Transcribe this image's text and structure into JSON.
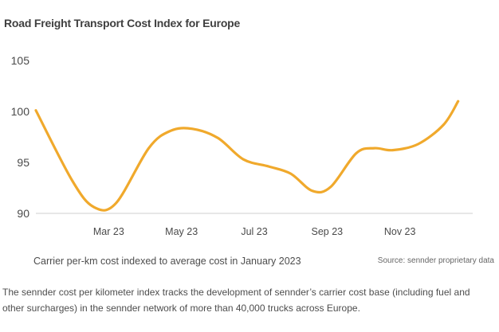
{
  "title": "Road Freight Transport Cost Index for Europe",
  "chart_data": {
    "type": "line",
    "title": "Road Freight Transport Cost Index for Europe",
    "xlabel": "",
    "ylabel": "",
    "ylim": [
      90,
      105
    ],
    "yticks": [
      90,
      95,
      100,
      105
    ],
    "xlim": [
      0,
      12
    ],
    "xticks": [
      {
        "label": "Mar 23",
        "x": 2
      },
      {
        "label": "May 23",
        "x": 4
      },
      {
        "label": "Jul 23",
        "x": 6
      },
      {
        "label": "Sep 23",
        "x": 8
      },
      {
        "label": "Nov 23",
        "x": 10
      }
    ],
    "grid": false,
    "color": "#f0a92c",
    "series": [
      {
        "name": "Carrier per-km cost index",
        "points": [
          [
            0.0,
            100.1
          ],
          [
            1.0,
            93.2
          ],
          [
            1.6,
            90.6
          ],
          [
            2.2,
            91.0
          ],
          [
            3.1,
            96.4
          ],
          [
            3.7,
            98.1
          ],
          [
            4.3,
            98.3
          ],
          [
            5.0,
            97.4
          ],
          [
            5.7,
            95.3
          ],
          [
            6.4,
            94.6
          ],
          [
            7.0,
            93.9
          ],
          [
            7.6,
            92.2
          ],
          [
            8.1,
            92.6
          ],
          [
            8.8,
            95.9
          ],
          [
            9.3,
            96.4
          ],
          [
            9.8,
            96.2
          ],
          [
            10.5,
            96.8
          ],
          [
            11.2,
            98.7
          ],
          [
            11.6,
            101.0
          ]
        ]
      }
    ]
  },
  "caption": "Carrier per-km cost indexed to average cost in January 2023",
  "source": "Source: sennder proprietary data",
  "description": "The sennder cost per kilometer index tracks the development of sennder’s carrier cost base (including fuel and other surcharges) in the sennder network of more than 40,000 trucks across Europe."
}
